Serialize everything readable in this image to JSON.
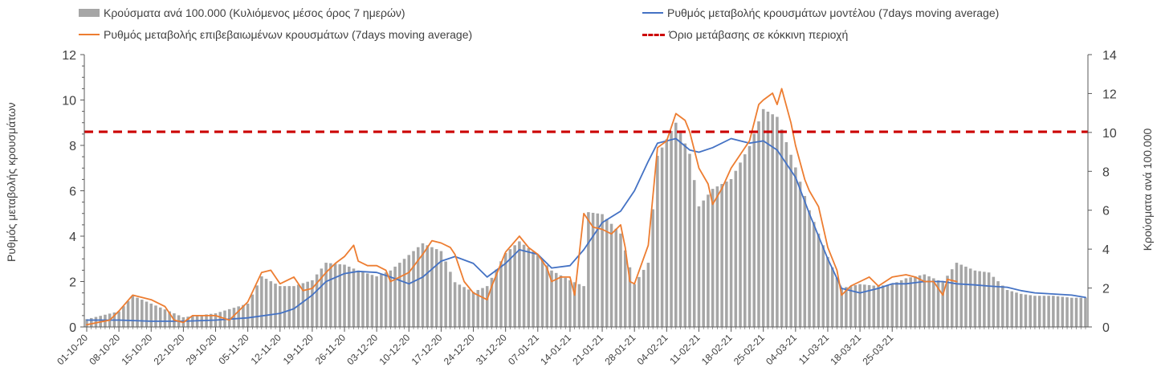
{
  "chart_data": {
    "type": "bar+line",
    "xlabel": "",
    "ylabel_left": "Ρυθμός μεταβολής κρουσμάτων",
    "ylabel_right": "Κρούσματα ανά 100.000",
    "y_left_lim": [
      0,
      12
    ],
    "y_right_lim": [
      0,
      14
    ],
    "y_left_ticks": [
      "0",
      "2",
      "4",
      "6",
      "8",
      "10",
      "12"
    ],
    "y_right_ticks": [
      "0",
      "2",
      "4",
      "6",
      "8",
      "10",
      "12",
      "14"
    ],
    "x_tick_labels": [
      "01-10-20",
      "08-10-20",
      "15-10-20",
      "22-10-20",
      "29-10-20",
      "05-11-20",
      "12-11-20",
      "19-11-20",
      "26-11-20",
      "03-12-20",
      "10-12-20",
      "17-12-20",
      "24-12-20",
      "31-12-20",
      "07-01-21",
      "14-01-21",
      "21-01-21",
      "28-01-21",
      "04-02-21",
      "11-02-21",
      "18-02-21",
      "25-02-21",
      "04-03-21",
      "11-03-21",
      "18-03-21",
      "25-03-21"
    ],
    "legend_position": "top",
    "grid": false,
    "colors": {
      "bars": "#a6a6a6",
      "model_line": "#4472c4",
      "confirmed_line": "#ed7d31",
      "threshold": "#cc0000",
      "axis": "#595959"
    },
    "series": [
      {
        "name": "Κρούσματα ανά 100.000 (Κυλιόμενος μέσος όρος 7 ημερών)",
        "kind": "bar",
        "axis": "right",
        "points": [
          [
            0,
            0.4
          ],
          [
            7,
            0.8
          ],
          [
            10,
            1.6
          ],
          [
            14,
            1.2
          ],
          [
            17,
            0.9
          ],
          [
            21,
            0.5
          ],
          [
            28,
            0.7
          ],
          [
            35,
            1.2
          ],
          [
            38,
            2.6
          ],
          [
            42,
            2.1
          ],
          [
            45,
            2.1
          ],
          [
            49,
            2.4
          ],
          [
            52,
            3.3
          ],
          [
            56,
            3.2
          ],
          [
            59,
            2.9
          ],
          [
            63,
            2.6
          ],
          [
            66,
            2.9
          ],
          [
            70,
            3.7
          ],
          [
            73,
            4.3
          ],
          [
            77,
            3.9
          ],
          [
            80,
            2.3
          ],
          [
            84,
            1.8
          ],
          [
            87,
            2.1
          ],
          [
            91,
            3.8
          ],
          [
            94,
            4.4
          ],
          [
            98,
            3.7
          ],
          [
            101,
            2.9
          ],
          [
            105,
            2.4
          ],
          [
            108,
            2.1
          ],
          [
            109,
            5.9
          ],
          [
            112,
            5.8
          ],
          [
            116,
            4.8
          ],
          [
            119,
            2.2
          ],
          [
            122,
            3.3
          ],
          [
            124,
            8.8
          ],
          [
            128,
            10.5
          ],
          [
            131,
            8.9
          ],
          [
            133,
            6.2
          ],
          [
            136,
            7.1
          ],
          [
            140,
            7.6
          ],
          [
            144,
            9.3
          ],
          [
            147,
            11.2
          ],
          [
            150,
            10.8
          ],
          [
            154,
            8.2
          ],
          [
            157,
            6.0
          ],
          [
            161,
            3.6
          ],
          [
            164,
            2.0
          ],
          [
            168,
            2.2
          ],
          [
            172,
            2.1
          ],
          [
            175,
            2.2
          ],
          [
            178,
            2.5
          ],
          [
            182,
            2.7
          ],
          [
            186,
            2.3
          ],
          [
            189,
            3.3
          ],
          [
            193,
            2.9
          ],
          [
            196,
            2.8
          ],
          [
            200,
            1.9
          ],
          [
            203,
            1.7
          ],
          [
            206,
            1.6
          ],
          [
            210,
            1.6
          ],
          [
            214,
            1.5
          ],
          [
            217,
            1.5
          ]
        ]
      },
      {
        "name": "Ρυθμός μεταβολής κρουσμάτων μοντέλου (7days moving average)",
        "kind": "line",
        "axis": "left",
        "points": [
          [
            0,
            0.3
          ],
          [
            7,
            0.3
          ],
          [
            14,
            0.25
          ],
          [
            21,
            0.25
          ],
          [
            28,
            0.3
          ],
          [
            35,
            0.4
          ],
          [
            42,
            0.6
          ],
          [
            45,
            0.8
          ],
          [
            49,
            1.4
          ],
          [
            52,
            2.0
          ],
          [
            56,
            2.35
          ],
          [
            59,
            2.45
          ],
          [
            63,
            2.4
          ],
          [
            66,
            2.2
          ],
          [
            70,
            1.9
          ],
          [
            73,
            2.2
          ],
          [
            77,
            2.9
          ],
          [
            80,
            3.1
          ],
          [
            84,
            2.8
          ],
          [
            87,
            2.2
          ],
          [
            91,
            2.8
          ],
          [
            94,
            3.4
          ],
          [
            98,
            3.2
          ],
          [
            101,
            2.6
          ],
          [
            105,
            2.7
          ],
          [
            108,
            3.4
          ],
          [
            112,
            4.6
          ],
          [
            116,
            5.1
          ],
          [
            119,
            6.0
          ],
          [
            122,
            7.3
          ],
          [
            124,
            8.1
          ],
          [
            128,
            8.3
          ],
          [
            131,
            7.8
          ],
          [
            133,
            7.7
          ],
          [
            136,
            7.9
          ],
          [
            140,
            8.3
          ],
          [
            144,
            8.1
          ],
          [
            147,
            8.2
          ],
          [
            150,
            7.8
          ],
          [
            154,
            6.6
          ],
          [
            157,
            5.0
          ],
          [
            161,
            3.0
          ],
          [
            164,
            1.7
          ],
          [
            168,
            1.5
          ],
          [
            172,
            1.7
          ],
          [
            175,
            1.9
          ],
          [
            178,
            1.9
          ],
          [
            182,
            2.0
          ],
          [
            186,
            2.0
          ],
          [
            189,
            1.9
          ],
          [
            193,
            1.85
          ],
          [
            196,
            1.8
          ],
          [
            200,
            1.75
          ],
          [
            203,
            1.6
          ],
          [
            206,
            1.5
          ],
          [
            210,
            1.45
          ],
          [
            214,
            1.4
          ],
          [
            217,
            1.3
          ]
        ]
      },
      {
        "name": "Ρυθμός μεταβολής επιβεβαιωμένων κρουσμάτων (7days moving average)",
        "kind": "line",
        "axis": "left",
        "points": [
          [
            0,
            0.1
          ],
          [
            5,
            0.3
          ],
          [
            7,
            0.7
          ],
          [
            10,
            1.4
          ],
          [
            14,
            1.2
          ],
          [
            17,
            0.9
          ],
          [
            19,
            0.3
          ],
          [
            21,
            0.2
          ],
          [
            23,
            0.5
          ],
          [
            28,
            0.5
          ],
          [
            31,
            0.3
          ],
          [
            35,
            1.1
          ],
          [
            38,
            2.4
          ],
          [
            40,
            2.5
          ],
          [
            42,
            1.9
          ],
          [
            45,
            2.2
          ],
          [
            47,
            1.6
          ],
          [
            49,
            1.7
          ],
          [
            52,
            2.4
          ],
          [
            54,
            2.8
          ],
          [
            56,
            3.1
          ],
          [
            58,
            3.6
          ],
          [
            59,
            2.9
          ],
          [
            61,
            2.7
          ],
          [
            63,
            2.7
          ],
          [
            65,
            2.5
          ],
          [
            66,
            2.0
          ],
          [
            70,
            2.4
          ],
          [
            73,
            3.2
          ],
          [
            75,
            3.8
          ],
          [
            77,
            3.7
          ],
          [
            79,
            3.5
          ],
          [
            80,
            3.2
          ],
          [
            82,
            2.0
          ],
          [
            84,
            1.5
          ],
          [
            87,
            1.2
          ],
          [
            88,
            1.8
          ],
          [
            91,
            3.3
          ],
          [
            94,
            4.0
          ],
          [
            96,
            3.5
          ],
          [
            98,
            3.2
          ],
          [
            100,
            2.6
          ],
          [
            101,
            2.0
          ],
          [
            103,
            2.2
          ],
          [
            105,
            2.2
          ],
          [
            106,
            1.4
          ],
          [
            108,
            5.0
          ],
          [
            110,
            4.4
          ],
          [
            112,
            4.3
          ],
          [
            114,
            4.1
          ],
          [
            116,
            4.5
          ],
          [
            117,
            3.5
          ],
          [
            118,
            2.0
          ],
          [
            119,
            1.9
          ],
          [
            122,
            3.6
          ],
          [
            124,
            7.9
          ],
          [
            126,
            8.2
          ],
          [
            128,
            9.4
          ],
          [
            130,
            9.1
          ],
          [
            131,
            8.6
          ],
          [
            133,
            7.0
          ],
          [
            135,
            6.3
          ],
          [
            136,
            5.4
          ],
          [
            138,
            6.1
          ],
          [
            140,
            7.0
          ],
          [
            144,
            8.2
          ],
          [
            146,
            9.8
          ],
          [
            147,
            10.0
          ],
          [
            149,
            10.3
          ],
          [
            150,
            9.8
          ],
          [
            151,
            10.5
          ],
          [
            153,
            9.0
          ],
          [
            154,
            8.0
          ],
          [
            156,
            6.5
          ],
          [
            157,
            6.0
          ],
          [
            159,
            5.3
          ],
          [
            161,
            3.5
          ],
          [
            163,
            2.5
          ],
          [
            164,
            1.4
          ],
          [
            166,
            1.8
          ],
          [
            168,
            2.0
          ],
          [
            170,
            2.2
          ],
          [
            172,
            1.8
          ],
          [
            175,
            2.2
          ],
          [
            178,
            2.3
          ],
          [
            180,
            2.2
          ],
          [
            182,
            2.0
          ],
          [
            184,
            2.0
          ],
          [
            186,
            1.4
          ],
          [
            187,
            2.1
          ],
          [
            189,
            2.0
          ]
        ]
      },
      {
        "name": "Όριο μετάβασης σε κόκκινη περιοχή",
        "kind": "threshold",
        "axis": "left",
        "value": 8.6
      }
    ]
  }
}
